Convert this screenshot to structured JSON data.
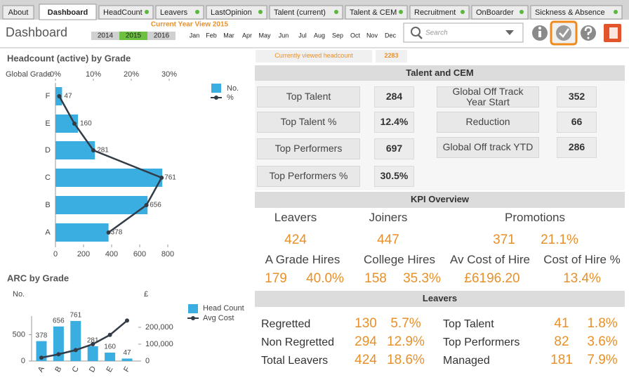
{
  "tabs": [
    "About",
    "Dashboard",
    "HeadCount",
    "Leavers",
    "LastOpinion",
    "Talent (current)",
    "Talent & CEM",
    "Recruitment",
    "OnBoarder",
    "Sickness & Absence"
  ],
  "header": {
    "title": "Dashboard",
    "year_view": "Current Year View 2015",
    "years": [
      "2014",
      "2015",
      "2016"
    ],
    "months": [
      "Jan",
      "Feb",
      "Mar",
      "Apr",
      "May",
      "Jun",
      "Jul",
      "Aug",
      "Sep",
      "Oct",
      "Nov",
      "Dec"
    ],
    "search_placeholder": "Search"
  },
  "headcount_chart": {
    "type": "bar",
    "title": "Headcount (active) by Grade",
    "y_label": "Global Grade",
    "categories": [
      "F",
      "E",
      "D",
      "C",
      "B",
      "A"
    ],
    "series": [
      {
        "name": "No.",
        "color": "#3aaee0",
        "values": [
          47,
          160,
          281,
          761,
          656,
          378
        ]
      },
      {
        "name": "%",
        "color": "#333c46",
        "values": [
          1,
          5,
          10,
          28,
          24,
          14
        ],
        "axis": "x2"
      }
    ],
    "xlim": [
      0,
      800
    ],
    "xticks": [
      0,
      200,
      400,
      600,
      800
    ],
    "x2lim": [
      0,
      30
    ],
    "x2ticks": [
      {
        "value": 0,
        "label": "0%"
      },
      {
        "value": 10,
        "label": "10%"
      },
      {
        "value": 20,
        "label": "20%"
      },
      {
        "value": 30,
        "label": "30%"
      }
    ]
  },
  "arc_chart": {
    "type": "bar",
    "title": "ARC by Grade",
    "y_label": "No.",
    "y2_label": "£",
    "categories": [
      "A",
      "B",
      "C",
      "D",
      "E",
      "F"
    ],
    "series": [
      {
        "name": "Head Count",
        "color": "#3aaee0",
        "values": [
          378,
          656,
          761,
          281,
          160,
          47
        ]
      },
      {
        "name": "Avg Cost",
        "color": "#333c46",
        "values": [
          20000,
          40000,
          65000,
          100000,
          155000,
          240000
        ],
        "axis": "y2"
      }
    ],
    "ylim": [
      0,
      800
    ],
    "yticks": [
      0,
      500
    ],
    "y2lim": [
      0,
      250000
    ],
    "y2ticks": [
      0,
      {
        "value": 100000,
        "label": "100,000"
      },
      {
        "value": 200000,
        "label": "200,000"
      }
    ]
  },
  "current_headcount": {
    "label": "Currently viewed headcount",
    "value": 2283
  },
  "talent_cem": {
    "title": "Talent and CEM",
    "items": [
      {
        "label": "Top Talent",
        "value": 284
      },
      {
        "label": "Top Talent %",
        "value": "12.4%"
      },
      {
        "label": "Top Performers",
        "value": 697
      },
      {
        "label": "Top Performers %",
        "value": "30.5%"
      },
      {
        "label": "Global Off Track Year Start",
        "value": 352
      },
      {
        "label": "Reduction",
        "value": 66
      },
      {
        "label": "Global Off track YTD",
        "value": 286
      }
    ]
  },
  "kpi": {
    "title": "KPI Overview",
    "leavers": {
      "label": "Leavers",
      "value": 424
    },
    "joiners": {
      "label": "Joiners",
      "value": 447
    },
    "promotions": {
      "label": "Promotions",
      "value": 371,
      "percent": "21.1%"
    },
    "a_grade_hires": {
      "label": "A Grade Hires",
      "value": 179,
      "percent": "40.0%"
    },
    "college_hires": {
      "label": "College Hires",
      "value": 158,
      "percent": "35.3%"
    },
    "av_cost_of_hire": {
      "label": "Av Cost of Hire",
      "value": "£6196.20"
    },
    "cost_of_hire_pct": {
      "label": "Cost of Hire %",
      "value": "13.4%"
    }
  },
  "leavers": {
    "title": "Leavers",
    "rows": [
      {
        "label": "Regretted",
        "value": 130,
        "percent": "5.7%"
      },
      {
        "label": "Non Regretted",
        "value": 294,
        "percent": "12.9%"
      },
      {
        "label": "Total Leavers",
        "value": 424,
        "percent": "18.6%"
      },
      {
        "label": "Top Talent",
        "value": 41,
        "percent": "1.8%"
      },
      {
        "label": "Top Performers",
        "value": 82,
        "percent": "3.6%"
      },
      {
        "label": "Managed",
        "value": 181,
        "percent": "7.9%"
      }
    ]
  }
}
